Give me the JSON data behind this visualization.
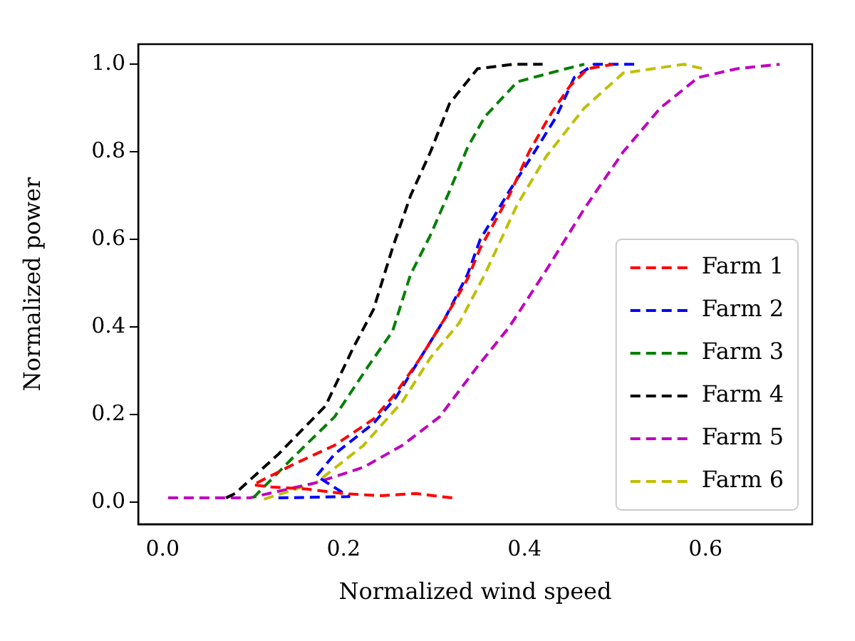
{
  "chart_data": {
    "type": "line",
    "xlabel": "Normalized wind speed",
    "ylabel": "Normalized power",
    "xlim": [
      -0.027,
      0.718
    ],
    "ylim": [
      -0.05,
      1.046
    ],
    "xticks": [
      {
        "value": 0,
        "label": "0.0"
      },
      {
        "value": 0.2,
        "label": "0.2"
      },
      {
        "value": 0.4,
        "label": "0.4"
      },
      {
        "value": 0.6,
        "label": "0.6"
      }
    ],
    "yticks": [
      {
        "value": 0,
        "label": "0.0"
      },
      {
        "value": 0.2,
        "label": "0.2"
      },
      {
        "value": 0.4,
        "label": "0.4"
      },
      {
        "value": 0.6,
        "label": "0.6"
      },
      {
        "value": 0.8,
        "label": "0.8"
      },
      {
        "value": 1,
        "label": "1.0"
      }
    ],
    "grid": false,
    "legend": "bottom right",
    "marker": "none",
    "line_style": "dashed",
    "series": [
      {
        "name": "Farm 1",
        "color": "#ff0000",
        "x": [
          0.32,
          0.28,
          0.24,
          0.2,
          0.16,
          0.12,
          0.1,
          0.148,
          0.19,
          0.233,
          0.258,
          0.285,
          0.312,
          0.337,
          0.351,
          0.383,
          0.405,
          0.43,
          0.45,
          0.47,
          0.498
        ],
        "values": [
          0.01,
          0.02,
          0.015,
          0.02,
          0.03,
          0.035,
          0.04,
          0.09,
          0.13,
          0.19,
          0.25,
          0.33,
          0.42,
          0.51,
          0.58,
          0.7,
          0.8,
          0.89,
          0.95,
          0.99,
          1.0
        ]
      },
      {
        "name": "Farm 2",
        "color": "#0000ff",
        "x": [
          0.128,
          0.206,
          0.17,
          0.19,
          0.233,
          0.258,
          0.285,
          0.312,
          0.337,
          0.351,
          0.383,
          0.408,
          0.435,
          0.455,
          0.477,
          0.524
        ],
        "values": [
          0.01,
          0.013,
          0.06,
          0.11,
          0.18,
          0.24,
          0.33,
          0.42,
          0.52,
          0.6,
          0.71,
          0.79,
          0.88,
          0.97,
          1.0,
          1.0
        ]
      },
      {
        "name": "Farm 3",
        "color": "#008000",
        "x": [
          0.1,
          0.143,
          0.19,
          0.227,
          0.254,
          0.274,
          0.296,
          0.317,
          0.337,
          0.356,
          0.392,
          0.446,
          0.466
        ],
        "values": [
          0.01,
          0.1,
          0.195,
          0.31,
          0.39,
          0.52,
          0.61,
          0.71,
          0.81,
          0.88,
          0.96,
          0.99,
          1.0
        ]
      },
      {
        "name": "Farm 4",
        "color": "#000000",
        "x": [
          0.07,
          0.08,
          0.128,
          0.18,
          0.21,
          0.233,
          0.254,
          0.274,
          0.296,
          0.317,
          0.348,
          0.387,
          0.42
        ],
        "values": [
          0.01,
          0.02,
          0.11,
          0.22,
          0.35,
          0.44,
          0.58,
          0.7,
          0.8,
          0.91,
          0.99,
          1.0,
          1.0
        ]
      },
      {
        "name": "Farm 5",
        "color": "#bf00bf",
        "x": [
          0.006,
          0.096,
          0.17,
          0.222,
          0.265,
          0.306,
          0.348,
          0.383,
          0.424,
          0.466,
          0.509,
          0.55,
          0.592,
          0.635,
          0.682
        ],
        "values": [
          0.01,
          0.01,
          0.045,
          0.08,
          0.13,
          0.195,
          0.31,
          0.4,
          0.53,
          0.67,
          0.8,
          0.9,
          0.97,
          0.99,
          1.0
        ]
      },
      {
        "name": "Farm 6",
        "color": "#bfbf00",
        "x": [
          0.112,
          0.17,
          0.222,
          0.265,
          0.296,
          0.328,
          0.356,
          0.392,
          0.424,
          0.466,
          0.509,
          0.576,
          0.597
        ],
        "values": [
          0.007,
          0.045,
          0.13,
          0.23,
          0.33,
          0.41,
          0.52,
          0.68,
          0.79,
          0.9,
          0.98,
          1.0,
          0.99
        ]
      }
    ]
  }
}
